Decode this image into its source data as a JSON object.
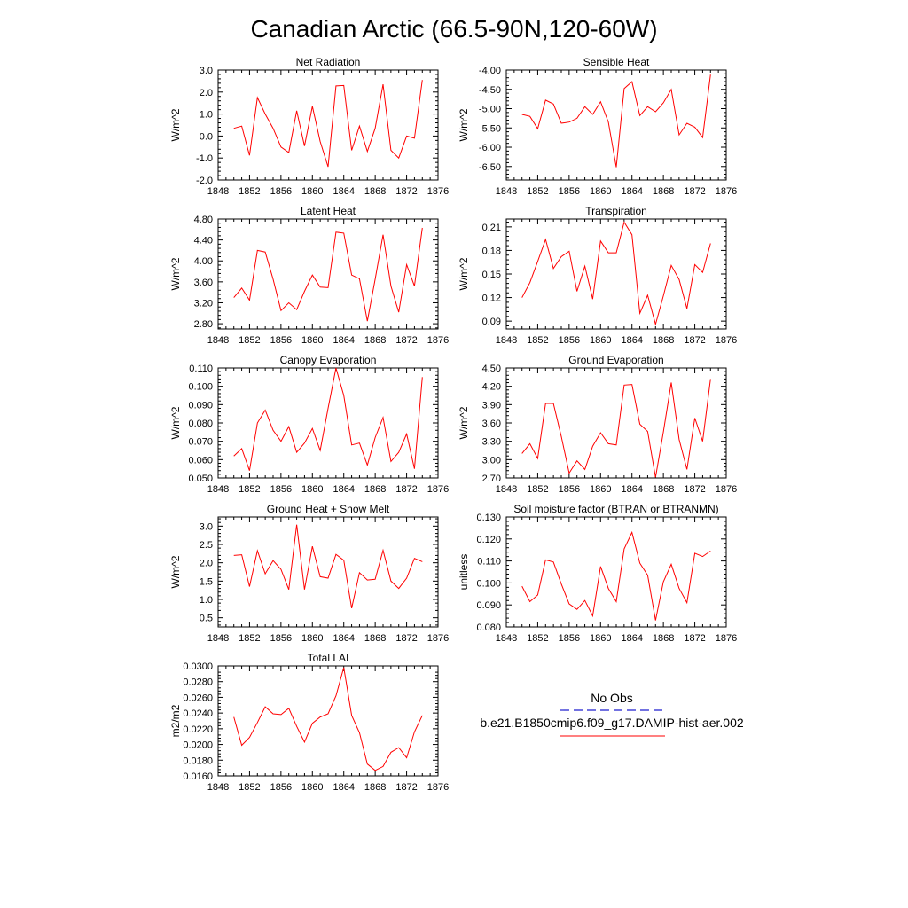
{
  "figure": {
    "title": "Canadian Arctic (66.5-90N,120-60W)",
    "line_color": "#ff0000",
    "obs_color": "#1f1fcf"
  },
  "legend": {
    "obs_label": "No Obs",
    "model_label": "b.e21.B1850cmip6.f09_g17.DAMIP-hist-aer.002"
  },
  "chart_data": [
    {
      "type": "line",
      "title": "Net Radiation",
      "ylabel": "W/m^2",
      "xlim": [
        1848,
        1876
      ],
      "x_ticks": [
        "1848",
        "1852",
        "1856",
        "1860",
        "1864",
        "1868",
        "1872",
        "1876"
      ],
      "ylim": [
        -2.0,
        3.0
      ],
      "y_ticks": [
        "-2.0",
        "-1.0",
        "0.0",
        "1.0",
        "2.0",
        "3.0"
      ],
      "x": [
        1850,
        1851,
        1852,
        1853,
        1854,
        1855,
        1856,
        1857,
        1858,
        1859,
        1860,
        1861,
        1862,
        1863,
        1864,
        1865,
        1866,
        1867,
        1868,
        1869,
        1870,
        1871,
        1872,
        1873,
        1874
      ],
      "series": [
        {
          "values": [
            0.35,
            0.45,
            -0.88,
            1.75,
            1.0,
            0.35,
            -0.5,
            -0.75,
            1.15,
            -0.45,
            1.35,
            -0.25,
            -1.4,
            2.28,
            2.3,
            -0.65,
            0.45,
            -0.7,
            0.35,
            2.35,
            -0.65,
            -1.0,
            0.0,
            -0.1,
            2.55
          ]
        }
      ]
    },
    {
      "type": "line",
      "title": "Sensible Heat",
      "ylabel": "W/m^2",
      "xlim": [
        1848,
        1876
      ],
      "x_ticks": [
        "1848",
        "1852",
        "1856",
        "1860",
        "1864",
        "1868",
        "1872",
        "1876"
      ],
      "ylim": [
        -6.85,
        -4.0
      ],
      "y_ticks": [
        "-4.00",
        "-4.50",
        "-5.00",
        "-5.50",
        "-6.00",
        "-6.50"
      ],
      "x": [
        1850,
        1851,
        1852,
        1853,
        1854,
        1855,
        1856,
        1857,
        1858,
        1859,
        1860,
        1861,
        1862,
        1863,
        1864,
        1865,
        1866,
        1867,
        1868,
        1869,
        1870,
        1871,
        1872,
        1873,
        1874
      ],
      "series": [
        {
          "values": [
            -5.15,
            -5.2,
            -5.52,
            -4.78,
            -4.88,
            -5.38,
            -5.35,
            -5.25,
            -4.95,
            -5.15,
            -4.82,
            -5.35,
            -6.52,
            -4.48,
            -4.3,
            -5.18,
            -4.95,
            -5.08,
            -4.85,
            -4.5,
            -5.68,
            -5.38,
            -5.48,
            -5.75,
            -4.12
          ]
        }
      ]
    },
    {
      "type": "line",
      "title": "Latent Heat",
      "ylabel": "W/m^2",
      "xlim": [
        1848,
        1876
      ],
      "x_ticks": [
        "1848",
        "1852",
        "1856",
        "1860",
        "1864",
        "1868",
        "1872",
        "1876"
      ],
      "ylim": [
        2.7,
        4.8
      ],
      "y_ticks": [
        "2.80",
        "3.20",
        "3.60",
        "4.00",
        "4.40",
        "4.80"
      ],
      "x": [
        1850,
        1851,
        1852,
        1853,
        1854,
        1855,
        1856,
        1857,
        1858,
        1859,
        1860,
        1861,
        1862,
        1863,
        1864,
        1865,
        1866,
        1867,
        1868,
        1869,
        1870,
        1871,
        1872,
        1873,
        1874
      ],
      "series": [
        {
          "values": [
            3.3,
            3.48,
            3.25,
            4.2,
            4.17,
            3.65,
            3.05,
            3.2,
            3.07,
            3.42,
            3.73,
            3.5,
            3.49,
            4.55,
            4.53,
            3.73,
            3.66,
            2.85,
            3.65,
            4.5,
            3.52,
            3.02,
            3.93,
            3.52,
            4.63
          ]
        }
      ]
    },
    {
      "type": "line",
      "title": "Transpiration",
      "ylabel": "W/m^2",
      "xlim": [
        1848,
        1876
      ],
      "x_ticks": [
        "1848",
        "1852",
        "1856",
        "1860",
        "1864",
        "1868",
        "1872",
        "1876"
      ],
      "ylim": [
        0.08,
        0.22
      ],
      "y_ticks": [
        "0.09",
        "0.12",
        "0.15",
        "0.18",
        "0.21"
      ],
      "x": [
        1850,
        1851,
        1852,
        1853,
        1854,
        1855,
        1856,
        1857,
        1858,
        1859,
        1860,
        1861,
        1862,
        1863,
        1864,
        1865,
        1866,
        1867,
        1868,
        1869,
        1870,
        1871,
        1872,
        1873,
        1874
      ],
      "series": [
        {
          "values": [
            0.12,
            0.139,
            0.166,
            0.194,
            0.157,
            0.172,
            0.179,
            0.128,
            0.16,
            0.118,
            0.192,
            0.177,
            0.177,
            0.216,
            0.2,
            0.1,
            0.123,
            0.086,
            0.122,
            0.161,
            0.143,
            0.106,
            0.162,
            0.152,
            0.189
          ]
        }
      ]
    },
    {
      "type": "line",
      "title": "Canopy Evaporation",
      "ylabel": "W/m^2",
      "xlim": [
        1848,
        1876
      ],
      "x_ticks": [
        "1848",
        "1852",
        "1856",
        "1860",
        "1864",
        "1868",
        "1872",
        "1876"
      ],
      "ylim": [
        0.05,
        0.11
      ],
      "y_ticks": [
        "0.050",
        "0.060",
        "0.070",
        "0.080",
        "0.090",
        "0.100",
        "0.110"
      ],
      "x": [
        1850,
        1851,
        1852,
        1853,
        1854,
        1855,
        1856,
        1857,
        1858,
        1859,
        1860,
        1861,
        1862,
        1863,
        1864,
        1865,
        1866,
        1867,
        1868,
        1869,
        1870,
        1871,
        1872,
        1873,
        1874
      ],
      "series": [
        {
          "values": [
            0.062,
            0.066,
            0.054,
            0.08,
            0.087,
            0.076,
            0.07,
            0.078,
            0.064,
            0.069,
            0.077,
            0.065,
            0.088,
            0.11,
            0.095,
            0.068,
            0.069,
            0.057,
            0.072,
            0.083,
            0.059,
            0.064,
            0.074,
            0.055,
            0.105
          ]
        }
      ]
    },
    {
      "type": "line",
      "title": "Ground Evaporation",
      "ylabel": "W/m^2",
      "xlim": [
        1848,
        1876
      ],
      "x_ticks": [
        "1848",
        "1852",
        "1856",
        "1860",
        "1864",
        "1868",
        "1872",
        "1876"
      ],
      "ylim": [
        2.7,
        4.5
      ],
      "y_ticks": [
        "2.70",
        "3.00",
        "3.30",
        "3.60",
        "3.90",
        "4.20",
        "4.50"
      ],
      "x": [
        1850,
        1851,
        1852,
        1853,
        1854,
        1855,
        1856,
        1857,
        1858,
        1859,
        1860,
        1861,
        1862,
        1863,
        1864,
        1865,
        1866,
        1867,
        1868,
        1869,
        1870,
        1871,
        1872,
        1873,
        1874
      ],
      "series": [
        {
          "values": [
            3.1,
            3.26,
            3.02,
            3.92,
            3.92,
            3.38,
            2.78,
            2.98,
            2.84,
            3.22,
            3.44,
            3.26,
            3.24,
            4.22,
            4.23,
            3.58,
            3.46,
            2.71,
            3.45,
            4.26,
            3.33,
            2.84,
            3.68,
            3.3,
            4.32
          ]
        }
      ]
    },
    {
      "type": "line",
      "title": "Ground Heat + Snow Melt",
      "ylabel": "W/m^2",
      "xlim": [
        1848,
        1876
      ],
      "x_ticks": [
        "1848",
        "1852",
        "1856",
        "1860",
        "1864",
        "1868",
        "1872",
        "1876"
      ],
      "ylim": [
        0.25,
        3.25
      ],
      "y_ticks": [
        "0.5",
        "1.0",
        "1.5",
        "2.0",
        "2.5",
        "3.0"
      ],
      "x": [
        1850,
        1851,
        1852,
        1853,
        1854,
        1855,
        1856,
        1857,
        1858,
        1859,
        1860,
        1861,
        1862,
        1863,
        1864,
        1865,
        1866,
        1867,
        1868,
        1869,
        1870,
        1871,
        1872,
        1873,
        1874
      ],
      "series": [
        {
          "values": [
            2.2,
            2.22,
            1.35,
            2.33,
            1.7,
            2.06,
            1.82,
            1.27,
            3.04,
            1.27,
            2.45,
            1.62,
            1.58,
            2.23,
            2.07,
            0.76,
            1.73,
            1.53,
            1.55,
            2.34,
            1.5,
            1.3,
            1.58,
            2.12,
            2.03
          ]
        }
      ]
    },
    {
      "type": "line",
      "title": "Soil moisture factor (BTRAN or BTRANMN)",
      "ylabel": "unitless",
      "xlim": [
        1848,
        1876
      ],
      "x_ticks": [
        "1848",
        "1852",
        "1856",
        "1860",
        "1864",
        "1868",
        "1872",
        "1876"
      ],
      "ylim": [
        0.08,
        0.13
      ],
      "y_ticks": [
        "0.080",
        "0.090",
        "0.100",
        "0.110",
        "0.120",
        "0.130"
      ],
      "x": [
        1850,
        1851,
        1852,
        1853,
        1854,
        1855,
        1856,
        1857,
        1858,
        1859,
        1860,
        1861,
        1862,
        1863,
        1864,
        1865,
        1866,
        1867,
        1868,
        1869,
        1870,
        1871,
        1872,
        1873,
        1874
      ],
      "series": [
        {
          "values": [
            0.0985,
            0.0915,
            0.0945,
            0.1105,
            0.1095,
            0.0995,
            0.0905,
            0.088,
            0.092,
            0.085,
            0.1075,
            0.0975,
            0.0915,
            0.1155,
            0.123,
            0.109,
            0.1035,
            0.083,
            0.1005,
            0.1085,
            0.0975,
            0.091,
            0.1135,
            0.112,
            0.1145
          ]
        }
      ]
    },
    {
      "type": "line",
      "title": "Total LAI",
      "ylabel": "m2/m2",
      "xlim": [
        1848,
        1876
      ],
      "x_ticks": [
        "1848",
        "1852",
        "1856",
        "1860",
        "1864",
        "1868",
        "1872",
        "1876"
      ],
      "ylim": [
        0.016,
        0.03
      ],
      "y_ticks": [
        "0.0160",
        "0.0180",
        "0.0200",
        "0.0220",
        "0.0240",
        "0.0260",
        "0.0280",
        "0.0300"
      ],
      "x": [
        1850,
        1851,
        1852,
        1853,
        1854,
        1855,
        1856,
        1857,
        1858,
        1859,
        1860,
        1861,
        1862,
        1863,
        1864,
        1865,
        1866,
        1867,
        1868,
        1869,
        1870,
        1871,
        1872,
        1873,
        1874
      ],
      "series": [
        {
          "values": [
            0.0235,
            0.0199,
            0.0209,
            0.0228,
            0.0248,
            0.0239,
            0.0238,
            0.0246,
            0.0223,
            0.0203,
            0.0227,
            0.0235,
            0.0239,
            0.0262,
            0.0298,
            0.0237,
            0.0215,
            0.0175,
            0.0167,
            0.0172,
            0.019,
            0.0196,
            0.0183,
            0.0216,
            0.0237
          ]
        }
      ]
    }
  ]
}
